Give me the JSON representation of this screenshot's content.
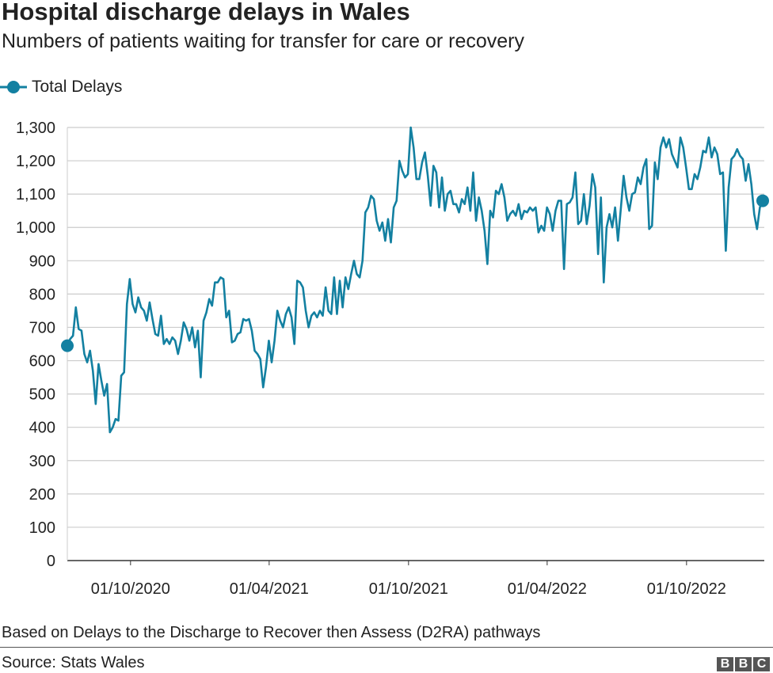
{
  "title": "Hospital discharge delays in Wales",
  "subtitle": "Numbers of patients waiting for transfer for care or recovery",
  "footnote": "Based on Delays to the Discharge to Recover then Assess (D2RA) pathways",
  "source": "Source: Stats Wales",
  "logo": [
    "B",
    "B",
    "C"
  ],
  "chart_data": {
    "type": "line",
    "title": "Hospital discharge delays in Wales",
    "legend": "top-left",
    "grid": true,
    "color": "#1380A1",
    "xlim": [
      "2020-07-10",
      "2023-01-09"
    ],
    "ylim": [
      0,
      1300
    ],
    "yticks": [
      0,
      100,
      200,
      300,
      400,
      500,
      600,
      700,
      800,
      900,
      1000,
      1100,
      1200,
      1300
    ],
    "ytick_labels": [
      "0",
      "100",
      "200",
      "300",
      "400",
      "500",
      "600",
      "700",
      "800",
      "900",
      "1,000",
      "1,100",
      "1,200",
      "1,300"
    ],
    "xticks": [
      "2020-10-01",
      "2021-04-01",
      "2021-10-01",
      "2022-04-01",
      "2022-10-01"
    ],
    "xtick_labels": [
      "01/10/2020",
      "01/04/2021",
      "01/10/2021",
      "01/04/2022",
      "01/10/2022"
    ],
    "series": [
      {
        "name": "Total Delays",
        "values": [
          645,
          665,
          675,
          760,
          695,
          690,
          620,
          595,
          630,
          570,
          470,
          590,
          540,
          495,
          530,
          385,
          400,
          425,
          420,
          555,
          565,
          770,
          845,
          770,
          745,
          790,
          760,
          750,
          720,
          775,
          725,
          680,
          675,
          735,
          650,
          665,
          650,
          670,
          660,
          620,
          660,
          715,
          695,
          660,
          700,
          640,
          690,
          550,
          720,
          745,
          785,
          765,
          835,
          835,
          850,
          845,
          730,
          750,
          655,
          660,
          680,
          685,
          725,
          720,
          725,
          690,
          630,
          620,
          605,
          520,
          580,
          660,
          595,
          660,
          750,
          720,
          700,
          740,
          760,
          730,
          650,
          840,
          835,
          820,
          750,
          700,
          735,
          745,
          730,
          750,
          735,
          820,
          750,
          740,
          850,
          740,
          840,
          760,
          850,
          815,
          860,
          900,
          860,
          850,
          900,
          1045,
          1060,
          1095,
          1085,
          1020,
          990,
          1015,
          960,
          1025,
          955,
          1060,
          1080,
          1200,
          1170,
          1150,
          1160,
          1300,
          1240,
          1145,
          1145,
          1195,
          1225,
          1155,
          1065,
          1185,
          1165,
          1060,
          1150,
          1050,
          1100,
          1110,
          1070,
          1070,
          1045,
          1085,
          1070,
          1120,
          1050,
          1165,
          1020,
          1090,
          1050,
          990,
          890,
          1050,
          1030,
          1110,
          1100,
          1130,
          1090,
          1020,
          1040,
          1050,
          1035,
          1070,
          1025,
          1050,
          1045,
          1060,
          1050,
          1060,
          985,
          1005,
          990,
          1060,
          1040,
          990,
          1050,
          1080,
          1080,
          875,
          1070,
          1075,
          1090,
          1165,
          1010,
          1020,
          1100,
          1010,
          1065,
          1160,
          1120,
          920,
          1090,
          835,
          1000,
          1040,
          1000,
          1060,
          960,
          1055,
          1155,
          1090,
          1050,
          1100,
          1105,
          1150,
          1130,
          1180,
          1205,
          995,
          1005,
          1195,
          1145,
          1240,
          1270,
          1240,
          1265,
          1220,
          1200,
          1180,
          1270,
          1240,
          1180,
          1115,
          1115,
          1160,
          1145,
          1180,
          1230,
          1225,
          1270,
          1210,
          1240,
          1220,
          1160,
          1165,
          930,
          1120,
          1205,
          1215,
          1235,
          1215,
          1205,
          1140,
          1190,
          1130,
          1040,
          995,
          1060,
          1080
        ]
      }
    ]
  }
}
